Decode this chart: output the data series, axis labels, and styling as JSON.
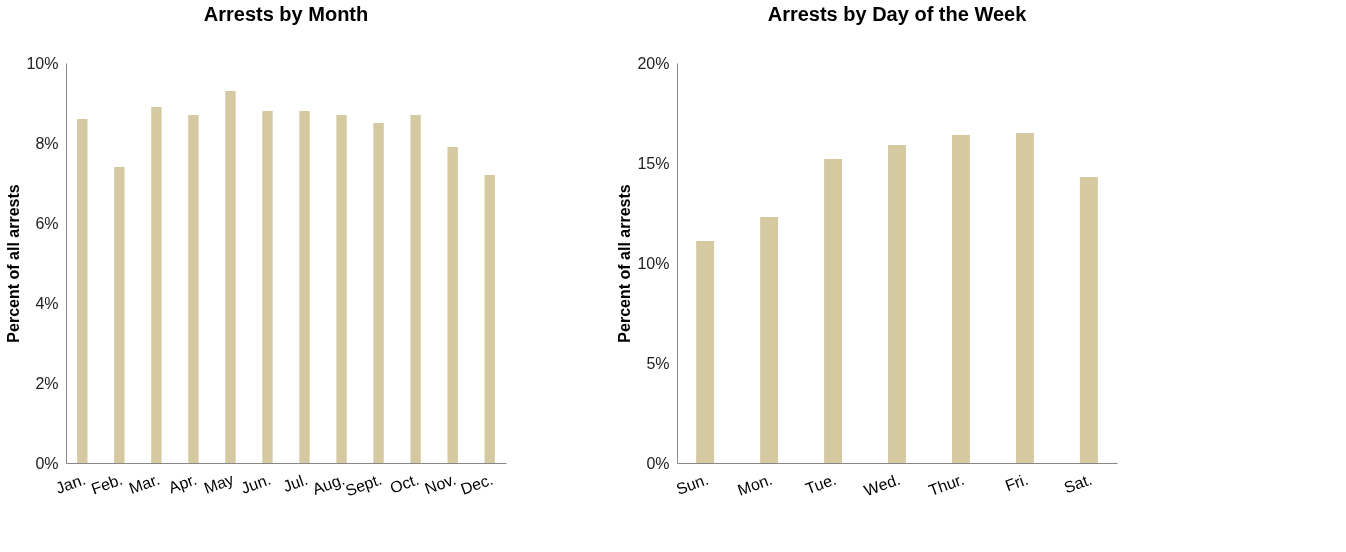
{
  "chart_data": [
    {
      "type": "bar",
      "title": "Arrests by Month",
      "ylabel": "Percent of all arrests",
      "categories": [
        "Jan.",
        "Feb.",
        "Mar.",
        "Apr.",
        "May",
        "Jun.",
        "Jul.",
        "Aug.",
        "Sept.",
        "Oct.",
        "Nov.",
        "Dec."
      ],
      "values": [
        8.6,
        7.4,
        8.9,
        8.7,
        9.3,
        8.8,
        8.8,
        8.7,
        8.5,
        8.7,
        7.9,
        7.2
      ],
      "color": "#d4c9a1",
      "ylim": [
        0,
        10
      ],
      "yticks": [
        {
          "value": 0,
          "label": "0%"
        },
        {
          "value": 2,
          "label": "2%"
        },
        {
          "value": 4,
          "label": "4%"
        },
        {
          "value": 6,
          "label": "6%"
        },
        {
          "value": 8,
          "label": "8%"
        },
        {
          "value": 10,
          "label": "10%"
        }
      ],
      "grid": false
    },
    {
      "type": "bar",
      "title": "Arrests by Day of the Week",
      "ylabel": "Percent of all arrests",
      "categories": [
        "Sun.",
        "Mon.",
        "Tue.",
        "Wed.",
        "Thur.",
        "Fri.",
        "Sat."
      ],
      "values": [
        11.1,
        12.3,
        15.2,
        15.9,
        16.4,
        16.5,
        14.3
      ],
      "color": "#d4c9a1",
      "ylim": [
        0,
        20
      ],
      "yticks": [
        {
          "value": 0,
          "label": "0%"
        },
        {
          "value": 5,
          "label": "5%"
        },
        {
          "value": 10,
          "label": "10%"
        },
        {
          "value": 15,
          "label": "15%"
        },
        {
          "value": 20,
          "label": "20%"
        }
      ],
      "grid": false
    }
  ]
}
